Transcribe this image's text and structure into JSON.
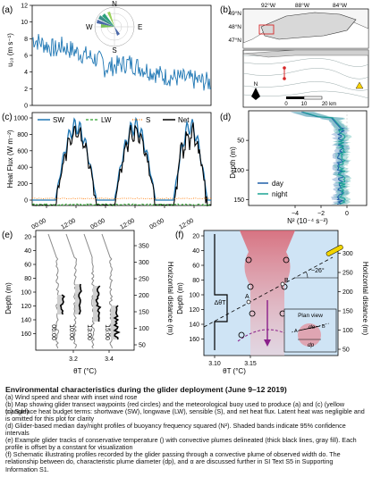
{
  "panels": {
    "a": {
      "label": "(a)",
      "ylabel": "u₁₀ (m s⁻¹)",
      "yticks": [
        "0",
        "2",
        "4",
        "6",
        "8",
        "10",
        "12"
      ],
      "ylim": [
        0,
        12
      ],
      "rose_labels": {
        "n": "N",
        "e": "E",
        "s": "S",
        "w": "W"
      },
      "wind_color": "#1f77b4"
    },
    "b": {
      "label": "(b)",
      "lon_labels": [
        "92°W",
        "88°W",
        "84°W"
      ],
      "lat_labels": [
        "49°N",
        "48°N",
        "47°N"
      ],
      "scale_labels": [
        "0",
        "10",
        "20 km"
      ],
      "north": "N"
    },
    "c": {
      "label": "(c)",
      "ylabel": "Heat Flux (W m⁻²)",
      "yticks": [
        "0",
        "200",
        "400",
        "600",
        "800",
        "1000"
      ],
      "xticks": [
        "00:00",
        "12:00",
        "00:00",
        "12:00",
        "00:00",
        "12:00"
      ],
      "legend": [
        "SW",
        "LW",
        "S",
        "Net"
      ],
      "colors": {
        "sw": "#1f77b4",
        "lw": "#2ca02c",
        "s": "#ff7f0e",
        "net": "#000000"
      }
    },
    "d": {
      "label": "(d)",
      "ylabel": "Depth (m)",
      "xlabel": "N² (10⁻⁴ s⁻²)",
      "xticks": [
        "−4",
        "−2",
        "0"
      ],
      "yticks": [
        "50",
        "100",
        "150"
      ],
      "legend": [
        "day",
        "night"
      ],
      "colors": {
        "day": "#1f5fa8",
        "night": "#1aa394"
      }
    },
    "e": {
      "label": "(e)",
      "ylabel": "Depth (m)",
      "ylabel_right": "Horizontal distance (m)",
      "yticks_left": [
        "20",
        "40",
        "60",
        "80",
        "100",
        "120",
        "140",
        "160"
      ],
      "yticks_right": [
        "50",
        "100",
        "150",
        "200",
        "250",
        "300",
        "350"
      ],
      "xticks": [
        "3.2",
        "3.4"
      ],
      "xlabel": "θT (°C)",
      "profile_labels": [
        "06:00",
        "10:00",
        "13:00",
        "15:00"
      ]
    },
    "f": {
      "label": "(f)",
      "ylabel": "Depth (m)",
      "ylabel_right": "Horizontal distance (m)",
      "yticks_left": [
        "20",
        "40",
        "60",
        "80",
        "100",
        "120",
        "140",
        "160"
      ],
      "yticks_right": [
        "50",
        "100",
        "150",
        "200",
        "250",
        "300"
      ],
      "xticks": [
        "3.10",
        "3.15"
      ],
      "xlabel": "θT (°C)",
      "angle_label": "~26°",
      "delta_label": "ΔθT",
      "point_a": "A",
      "point_b": "B",
      "inset_title": "Plan view",
      "inset_do": "do",
      "inset_dp": "dp"
    }
  },
  "caption": {
    "title": "Environmental characteristics during the glider deployment (June 9–12 2019)",
    "lines": [
      "(a) Wind speed and shear with inset wind rose",
      "(b) Map showing glider transect waypoints (red circles) and the meteorological buoy used to produce (a) and (c) (yellow triangle)",
      "(c) Surface heat budget terms: shortwave (SW), longwave (LW), sensible (S), and net heat flux. Latent heat was negligible and is omitted for this plot for clarity",
      "(d) Glider-based median day/night profiles of buoyancy frequency squared (N²). Shaded bands indicate 95% confidence intervals",
      "(e) Example glider tracks of conservative temperature () with convective plumes delineated (thick black lines, gray fill). Each profile is offset by a constant for visualization",
      "(f) Schematic illustrating profiles recorded by the glider passing through a convective plume of observed width do. The relationship between do, characteristic plume diameter (dp), and α are discussed further in SI Text S5 in Supporting Information S1."
    ]
  }
}
